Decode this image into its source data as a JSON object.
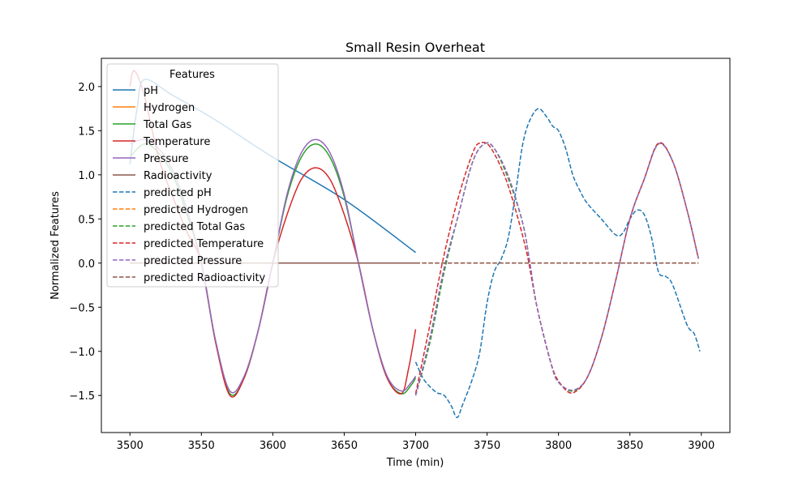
{
  "chart_data": {
    "type": "line",
    "title": "Small Resin Overheat",
    "xlabel": "Time (min)",
    "ylabel": "Normalized Features",
    "xlim": [
      3480,
      3920
    ],
    "ylim": [
      -1.92,
      2.32
    ],
    "xticks": [
      3500,
      3550,
      3600,
      3650,
      3700,
      3750,
      3800,
      3850,
      3900
    ],
    "yticks": [
      -1.5,
      -1.0,
      -0.5,
      0.0,
      0.5,
      1.0,
      1.5,
      2.0
    ],
    "grid": false,
    "legend": {
      "title": "Features",
      "location": "upper-left"
    },
    "series": [
      {
        "name": "pH",
        "color": "#1f77b4",
        "dashed": false,
        "points": [
          [
            3500,
            1.12
          ],
          [
            3502,
            1.4
          ],
          [
            3505,
            1.75
          ],
          [
            3510,
            2.08
          ],
          [
            3530,
            1.9
          ],
          [
            3560,
            1.62
          ],
          [
            3600,
            1.2
          ],
          [
            3650,
            0.72
          ],
          [
            3700,
            0.12
          ]
        ]
      },
      {
        "name": "Hydrogen",
        "color": "#ff7f0e",
        "dashed": false,
        "points": [
          [
            3500,
            0.0
          ],
          [
            3700,
            0.0
          ]
        ]
      },
      {
        "name": "Total Gas",
        "color": "#2ca02c",
        "dashed": false,
        "points": [
          [
            3500,
            1.2
          ],
          [
            3510,
            1.35
          ],
          [
            3520,
            1.25
          ],
          [
            3530,
            1.0
          ],
          [
            3540,
            0.55
          ],
          [
            3550,
            0.0
          ],
          [
            3560,
            -0.9
          ],
          [
            3570,
            -1.48
          ],
          [
            3580,
            -1.3
          ],
          [
            3590,
            -0.75
          ],
          [
            3600,
            0.0
          ],
          [
            3610,
            0.75
          ],
          [
            3620,
            1.2
          ],
          [
            3630,
            1.35
          ],
          [
            3640,
            1.2
          ],
          [
            3650,
            0.75
          ],
          [
            3660,
            0.0
          ],
          [
            3670,
            -0.75
          ],
          [
            3680,
            -1.3
          ],
          [
            3690,
            -1.48
          ],
          [
            3697,
            -1.38
          ],
          [
            3700,
            -1.3
          ]
        ]
      },
      {
        "name": "Temperature",
        "color": "#d62728",
        "dashed": false,
        "points": [
          [
            3500,
            2.0
          ],
          [
            3503,
            2.18
          ],
          [
            3510,
            1.9
          ],
          [
            3520,
            1.2
          ],
          [
            3530,
            0.75
          ],
          [
            3540,
            0.35
          ],
          [
            3550,
            0.0
          ],
          [
            3560,
            -0.9
          ],
          [
            3570,
            -1.5
          ],
          [
            3580,
            -1.3
          ],
          [
            3590,
            -0.75
          ],
          [
            3600,
            0.0
          ],
          [
            3610,
            0.55
          ],
          [
            3620,
            0.95
          ],
          [
            3630,
            1.08
          ],
          [
            3640,
            0.95
          ],
          [
            3650,
            0.55
          ],
          [
            3660,
            0.0
          ],
          [
            3670,
            -0.75
          ],
          [
            3680,
            -1.3
          ],
          [
            3690,
            -1.48
          ],
          [
            3695,
            -1.2
          ],
          [
            3700,
            -0.75
          ]
        ]
      },
      {
        "name": "Pressure",
        "color": "#9467bd",
        "dashed": false,
        "points": [
          [
            3500,
            1.35
          ],
          [
            3510,
            1.4
          ],
          [
            3520,
            1.3
          ],
          [
            3530,
            1.05
          ],
          [
            3540,
            0.6
          ],
          [
            3550,
            0.0
          ],
          [
            3560,
            -0.88
          ],
          [
            3570,
            -1.45
          ],
          [
            3580,
            -1.28
          ],
          [
            3590,
            -0.75
          ],
          [
            3600,
            0.0
          ],
          [
            3610,
            0.78
          ],
          [
            3620,
            1.25
          ],
          [
            3630,
            1.4
          ],
          [
            3640,
            1.25
          ],
          [
            3650,
            0.78
          ],
          [
            3660,
            0.0
          ],
          [
            3670,
            -0.75
          ],
          [
            3680,
            -1.28
          ],
          [
            3690,
            -1.45
          ],
          [
            3697,
            -1.35
          ],
          [
            3700,
            -1.28
          ]
        ]
      },
      {
        "name": "Radioactivity",
        "color": "#8c564b",
        "dashed": false,
        "points": [
          [
            3500,
            0.0
          ],
          [
            3700,
            0.0
          ]
        ]
      },
      {
        "name": "predicted pH",
        "color": "#1f77b4",
        "dashed": true,
        "points": [
          [
            3700,
            -1.12
          ],
          [
            3705,
            -1.3
          ],
          [
            3710,
            -1.4
          ],
          [
            3715,
            -1.47
          ],
          [
            3720,
            -1.5
          ],
          [
            3725,
            -1.62
          ],
          [
            3729,
            -1.75
          ],
          [
            3733,
            -1.6
          ],
          [
            3740,
            -1.3
          ],
          [
            3745,
            -1.0
          ],
          [
            3750,
            -0.45
          ],
          [
            3755,
            -0.1
          ],
          [
            3760,
            0.05
          ],
          [
            3765,
            0.3
          ],
          [
            3770,
            0.8
          ],
          [
            3775,
            1.35
          ],
          [
            3780,
            1.62
          ],
          [
            3786,
            1.75
          ],
          [
            3792,
            1.65
          ],
          [
            3796,
            1.55
          ],
          [
            3800,
            1.5
          ],
          [
            3805,
            1.3
          ],
          [
            3810,
            1.0
          ],
          [
            3815,
            0.82
          ],
          [
            3820,
            0.68
          ],
          [
            3830,
            0.5
          ],
          [
            3840,
            0.32
          ],
          [
            3845,
            0.34
          ],
          [
            3850,
            0.5
          ],
          [
            3855,
            0.6
          ],
          [
            3860,
            0.55
          ],
          [
            3865,
            0.3
          ],
          [
            3870,
            -0.1
          ],
          [
            3875,
            -0.15
          ],
          [
            3880,
            -0.25
          ],
          [
            3890,
            -0.7
          ],
          [
            3895,
            -0.8
          ],
          [
            3899,
            -1.0
          ]
        ]
      },
      {
        "name": "predicted Hydrogen",
        "color": "#ff7f0e",
        "dashed": true,
        "points": [
          [
            3700,
            0.0
          ],
          [
            3898,
            0.0
          ]
        ]
      },
      {
        "name": "predicted Total Gas",
        "color": "#2ca02c",
        "dashed": true,
        "points": [
          [
            3700,
            -1.5
          ],
          [
            3710,
            -0.9
          ],
          [
            3720,
            -0.1
          ],
          [
            3730,
            0.55
          ],
          [
            3740,
            1.15
          ],
          [
            3748,
            1.35
          ],
          [
            3755,
            1.3
          ],
          [
            3765,
            0.95
          ],
          [
            3775,
            0.45
          ],
          [
            3780,
            0.0
          ],
          [
            3785,
            -0.5
          ],
          [
            3795,
            -1.15
          ],
          [
            3800,
            -1.35
          ],
          [
            3810,
            -1.45
          ],
          [
            3820,
            -1.3
          ],
          [
            3830,
            -0.85
          ],
          [
            3840,
            -0.2
          ],
          [
            3850,
            0.5
          ],
          [
            3860,
            0.95
          ],
          [
            3870,
            1.35
          ],
          [
            3880,
            1.15
          ],
          [
            3890,
            0.6
          ],
          [
            3898,
            0.05
          ]
        ]
      },
      {
        "name": "predicted Temperature",
        "color": "#d62728",
        "dashed": true,
        "points": [
          [
            3700,
            -1.48
          ],
          [
            3710,
            -0.7
          ],
          [
            3720,
            0.1
          ],
          [
            3730,
            0.75
          ],
          [
            3740,
            1.25
          ],
          [
            3745,
            1.36
          ],
          [
            3752,
            1.32
          ],
          [
            3762,
            1.0
          ],
          [
            3770,
            0.6
          ],
          [
            3778,
            0.1
          ],
          [
            3785,
            -0.5
          ],
          [
            3795,
            -1.15
          ],
          [
            3802,
            -1.38
          ],
          [
            3810,
            -1.47
          ],
          [
            3820,
            -1.3
          ],
          [
            3830,
            -0.85
          ],
          [
            3840,
            -0.2
          ],
          [
            3850,
            0.5
          ],
          [
            3860,
            0.95
          ],
          [
            3870,
            1.36
          ],
          [
            3880,
            1.15
          ],
          [
            3890,
            0.6
          ],
          [
            3898,
            0.05
          ]
        ]
      },
      {
        "name": "predicted Pressure",
        "color": "#9467bd",
        "dashed": true,
        "points": [
          [
            3700,
            -1.5
          ],
          [
            3710,
            -0.85
          ],
          [
            3720,
            -0.05
          ],
          [
            3730,
            0.55
          ],
          [
            3740,
            1.15
          ],
          [
            3748,
            1.35
          ],
          [
            3755,
            1.3
          ],
          [
            3765,
            0.98
          ],
          [
            3775,
            0.45
          ],
          [
            3780,
            0.0
          ],
          [
            3785,
            -0.5
          ],
          [
            3795,
            -1.15
          ],
          [
            3800,
            -1.35
          ],
          [
            3810,
            -1.44
          ],
          [
            3820,
            -1.3
          ],
          [
            3830,
            -0.85
          ],
          [
            3840,
            -0.2
          ],
          [
            3850,
            0.5
          ],
          [
            3860,
            0.95
          ],
          [
            3870,
            1.35
          ],
          [
            3880,
            1.15
          ],
          [
            3890,
            0.6
          ],
          [
            3898,
            0.05
          ]
        ]
      },
      {
        "name": "predicted Radioactivity",
        "color": "#8c564b",
        "dashed": true,
        "points": [
          [
            3700,
            0.0
          ],
          [
            3898,
            0.0
          ]
        ]
      }
    ]
  }
}
